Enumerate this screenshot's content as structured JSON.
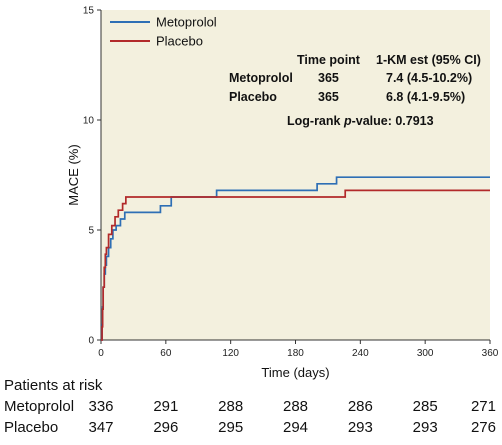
{
  "chart_data": {
    "type": "line",
    "step": true,
    "xlabel": "Time (days)",
    "ylabel": "MACE (%)",
    "xlim": [
      0,
      360
    ],
    "ylim": [
      0,
      15
    ],
    "x_ticks": [
      0,
      60,
      120,
      180,
      240,
      300,
      360
    ],
    "y_ticks": [
      0,
      5,
      10,
      15
    ],
    "grid": false,
    "background": "#f3f0de",
    "legend_position": "top-left",
    "series": [
      {
        "name": "Metoprolol",
        "color": "#2e6fb5",
        "points": [
          [
            0,
            0
          ],
          [
            1,
            0.7
          ],
          [
            1.5,
            1.5
          ],
          [
            2,
            2.4
          ],
          [
            3,
            3.0
          ],
          [
            4,
            3.4
          ],
          [
            5,
            3.8
          ],
          [
            7,
            4.2
          ],
          [
            9,
            4.6
          ],
          [
            11,
            5.0
          ],
          [
            14,
            5.2
          ],
          [
            18,
            5.5
          ],
          [
            22,
            5.8
          ],
          [
            55,
            6.1
          ],
          [
            65,
            6.5
          ],
          [
            107,
            6.8
          ],
          [
            200,
            7.1
          ],
          [
            218,
            7.4
          ],
          [
            360,
            7.4
          ]
        ]
      },
      {
        "name": "Placebo",
        "color": "#b22a2a",
        "points": [
          [
            0,
            0
          ],
          [
            1,
            0.6
          ],
          [
            1.5,
            1.4
          ],
          [
            2,
            2.4
          ],
          [
            3,
            3.3
          ],
          [
            4,
            3.9
          ],
          [
            5,
            4.2
          ],
          [
            7,
            4.8
          ],
          [
            10,
            5.2
          ],
          [
            13,
            5.6
          ],
          [
            16,
            5.9
          ],
          [
            20,
            6.2
          ],
          [
            23,
            6.5
          ],
          [
            226,
            6.8
          ],
          [
            360,
            6.8
          ]
        ]
      }
    ],
    "stats_table": {
      "headers": [
        "Time point",
        "1-KM est (95% CI)"
      ],
      "rows": [
        {
          "group": "Metoprolol",
          "time_point": "365",
          "estimate": "7.4 (4.5-10.2%)"
        },
        {
          "group": "Placebo",
          "time_point": "365",
          "estimate": "6.8 (4.1-9.5%)"
        }
      ]
    },
    "logrank": {
      "prefix": "Log-rank ",
      "p_symbol": "p",
      "suffix": "-value: 0.7913"
    },
    "risk_table": {
      "title": "Patients at risk",
      "rows": [
        {
          "group": "Metoprolol",
          "values": [
            "336",
            "291",
            "288",
            "288",
            "286",
            "285",
            "271"
          ]
        },
        {
          "group": "Placebo",
          "values": [
            "347",
            "296",
            "295",
            "294",
            "293",
            "293",
            "276"
          ]
        }
      ]
    }
  }
}
